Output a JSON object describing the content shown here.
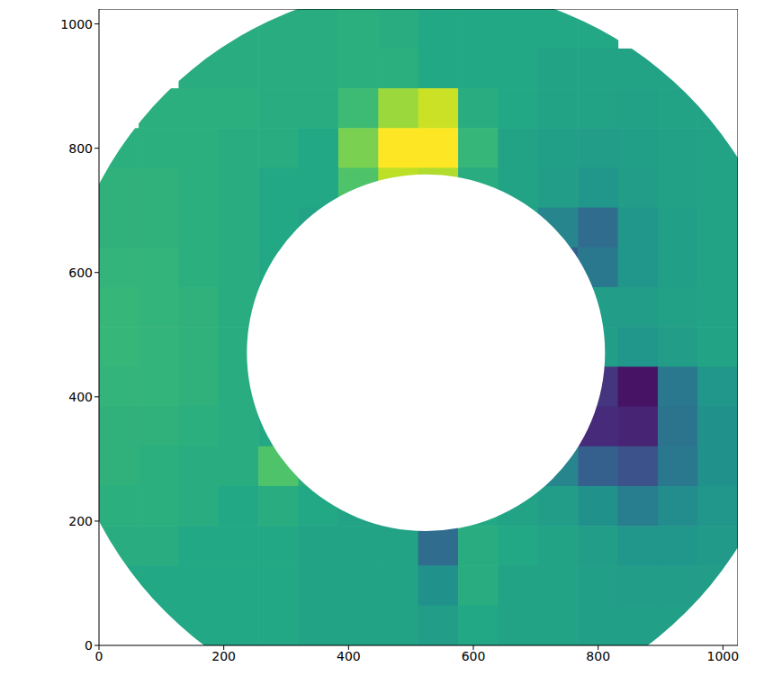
{
  "chart_data": {
    "type": "image",
    "xlim": [
      0,
      1024
    ],
    "ylim": [
      0,
      1024
    ],
    "xticks": [
      0,
      200,
      400,
      600,
      800,
      1000
    ],
    "yticks": [
      0,
      200,
      400,
      600,
      800,
      1000
    ],
    "clim": [
      0,
      1
    ],
    "grid_cell": 64,
    "cells": [
      [
        null,
        null,
        null,
        0.62,
        0.62,
        0.62,
        0.63,
        0.62,
        0.6,
        0.6,
        0.6,
        0.6,
        0.6,
        null,
        null,
        null
      ],
      [
        null,
        null,
        0.62,
        0.62,
        0.62,
        0.62,
        0.63,
        0.63,
        0.6,
        0.6,
        0.6,
        0.58,
        0.58,
        0.58,
        0.58,
        null
      ],
      [
        null,
        0.63,
        0.63,
        0.63,
        0.62,
        0.62,
        0.68,
        0.85,
        0.92,
        0.62,
        0.6,
        0.58,
        0.58,
        0.57,
        0.58,
        0.58
      ],
      [
        0.63,
        0.63,
        0.63,
        0.62,
        0.62,
        0.6,
        0.8,
        1.0,
        1.0,
        0.66,
        0.58,
        0.56,
        0.55,
        0.56,
        0.57,
        0.58
      ],
      [
        0.64,
        0.64,
        0.63,
        0.62,
        0.6,
        0.6,
        0.72,
        0.9,
        0.88,
        0.62,
        0.58,
        0.55,
        0.52,
        0.55,
        0.57,
        0.58
      ],
      [
        0.64,
        0.64,
        0.63,
        0.62,
        0.6,
        0.58,
        null,
        null,
        null,
        null,
        0.58,
        0.45,
        0.35,
        0.52,
        0.56,
        0.58
      ],
      [
        0.65,
        0.65,
        0.63,
        0.62,
        0.6,
        null,
        null,
        null,
        null,
        null,
        null,
        0.3,
        0.4,
        0.52,
        0.56,
        0.58
      ],
      [
        0.66,
        0.65,
        0.64,
        0.62,
        0.6,
        null,
        null,
        null,
        null,
        null,
        null,
        null,
        0.55,
        0.55,
        0.57,
        0.58
      ],
      [
        0.66,
        0.65,
        0.64,
        0.62,
        null,
        null,
        null,
        null,
        null,
        null,
        null,
        null,
        0.55,
        0.52,
        0.55,
        0.58
      ],
      [
        0.65,
        0.65,
        0.64,
        0.62,
        null,
        null,
        null,
        null,
        null,
        null,
        null,
        null,
        0.15,
        0.05,
        0.4,
        0.52
      ],
      [
        0.64,
        0.64,
        0.63,
        0.62,
        0.6,
        null,
        null,
        null,
        null,
        null,
        null,
        null,
        0.12,
        0.1,
        0.38,
        0.5
      ],
      [
        0.64,
        0.63,
        0.62,
        0.62,
        0.72,
        0.62,
        null,
        null,
        null,
        null,
        null,
        0.45,
        0.3,
        0.25,
        0.4,
        0.5
      ],
      [
        0.63,
        0.63,
        0.62,
        0.6,
        0.62,
        0.6,
        0.58,
        0.55,
        0.58,
        0.6,
        0.58,
        0.55,
        0.5,
        0.42,
        0.48,
        0.52
      ],
      [
        0.62,
        0.62,
        0.6,
        0.6,
        0.6,
        0.58,
        0.58,
        0.58,
        0.35,
        0.62,
        0.6,
        0.58,
        0.55,
        0.52,
        0.52,
        0.54
      ],
      [
        0.6,
        0.6,
        0.6,
        0.6,
        0.6,
        0.58,
        0.58,
        0.58,
        0.5,
        0.62,
        0.58,
        0.58,
        0.56,
        0.55,
        0.55,
        0.55
      ],
      [
        null,
        0.6,
        0.6,
        0.6,
        0.6,
        0.58,
        0.58,
        0.58,
        0.55,
        0.6,
        0.58,
        0.58,
        0.56,
        0.56,
        0.56,
        null
      ]
    ],
    "mask": {
      "x": 524,
      "y": 471,
      "inner_radius": 287,
      "outer_radius": 590
    }
  }
}
